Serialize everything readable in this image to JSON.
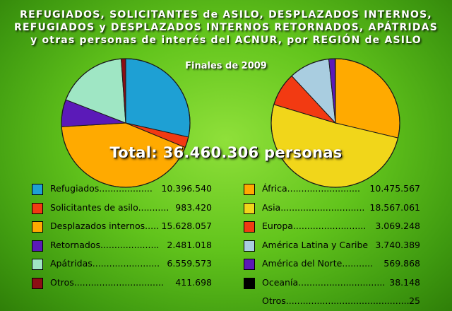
{
  "header": {
    "line1": "REFUGIADOS, SOLICITANTES de ASILO, DESPLAZADOS INTERNOS,",
    "line2": "REFUGIADOS y DESPLAZADOS INTERNOS RETORNADOS, APÁTRIDAS",
    "line3": "y otras personas de interés del ACNUR, por REGIÓN de ASILO",
    "subtitle": "Finales de 2009",
    "total": "Total: 36.460.306 personas"
  },
  "chart_data": [
    {
      "type": "pie",
      "start_angle_deg": 0,
      "slices": [
        {
          "label": "Refugiados",
          "dots": "...................",
          "value_text": "10.396.540",
          "value": 10396540,
          "color": "#1ea0d4"
        },
        {
          "label": "Solicitantes de asilo",
          "dots": "...........",
          "value_text": "983.420",
          "value": 983420,
          "color": "#f23a12"
        },
        {
          "label": "Desplazados internos",
          "dots": ".....",
          "value_text": "15.628.057",
          "value": 15628057,
          "color": "#ffaa00"
        },
        {
          "label": "Retornados",
          "dots": ".....................",
          "value_text": "2.481.018",
          "value": 2481018,
          "color": "#5b1ab8"
        },
        {
          "label": "Apátridas",
          "dots": "........................",
          "value_text": "6.559.573",
          "value": 6559573,
          "color": "#9fe6c4"
        },
        {
          "label": "Otros",
          "dots": "................................",
          "value_text": "411.698",
          "value": 411698,
          "color": "#8c0e14"
        }
      ]
    },
    {
      "type": "pie",
      "start_angle_deg": 0,
      "slices": [
        {
          "label": "África",
          "dots": "..........................",
          "value_text": "10.475.567",
          "value": 10475567,
          "color": "#ffaa00"
        },
        {
          "label": "Asia",
          "dots": "..............................",
          "value_text": "18.567.061",
          "value": 18567061,
          "color": "#f1d61a"
        },
        {
          "label": "Europa",
          "dots": "..........................",
          "value_text": "3.069.248",
          "value": 3069248,
          "color": "#f23a12"
        },
        {
          "label": "América Latina y Caribe",
          "dots": "",
          "value_text": "3.740.389",
          "value": 3740389,
          "color": "#a9cde0"
        },
        {
          "label": "América del Norte",
          "dots": "...........",
          "value_text": "569.868",
          "value": 569868,
          "color": "#5b1ab8"
        },
        {
          "label": "Oceanía",
          "dots": "...............................",
          "value_text": "38.148",
          "value": 38148,
          "color": "#000000"
        },
        {
          "label": "Otros",
          "dots": "............................................",
          "value_text": "25",
          "value": 25,
          "color": null
        }
      ]
    }
  ]
}
